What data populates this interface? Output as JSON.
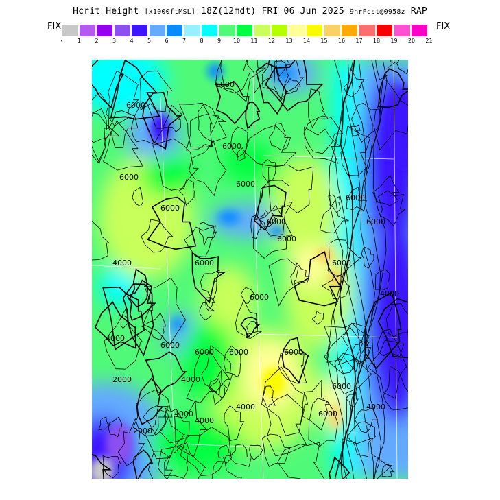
{
  "title": {
    "main": "Hcrit Height",
    "units": "[x1000ftMSL]",
    "time": "18Z(12mdt) FRI 06 Jun 2025",
    "forecast": "9hrFcst@0958z",
    "model": "RAP"
  },
  "colorbar": {
    "left_label": "FIX",
    "right_label": "FIX",
    "under_label": "‹",
    "over_label": "›",
    "colors": [
      "#c8c8c8",
      "#b45af0",
      "#9600f0",
      "#8c50f0",
      "#3c14ff",
      "#64aaff",
      "#0a8cff",
      "#96f0ff",
      "#00ffff",
      "#50fa78",
      "#00ff40",
      "#c8ff5a",
      "#b4ff00",
      "#ffff96",
      "#fafa00",
      "#fad264",
      "#ffaa00",
      "#ff6e6e",
      "#ff0000",
      "#ff50d2",
      "#ff00c8"
    ],
    "ticks": [
      "1",
      "2",
      "3",
      "4",
      "5",
      "6",
      "7",
      "8",
      "9",
      "10",
      "11",
      "12",
      "13",
      "14",
      "15",
      "16",
      "17",
      "18",
      "19",
      "20",
      "21"
    ]
  },
  "map": {
    "contour_labels": [
      "6000",
      "6000",
      "6000",
      "6000",
      "6000",
      "6000",
      "6000",
      "6000",
      "6000",
      "6000",
      "6000",
      "6000",
      "6000",
      "6000",
      "6000",
      "6000",
      "6000",
      "6000",
      "4000",
      "4000",
      "4000",
      "4000",
      "4000",
      "4000",
      "4000",
      "4000",
      "2000",
      "2000",
      "6000"
    ]
  }
}
